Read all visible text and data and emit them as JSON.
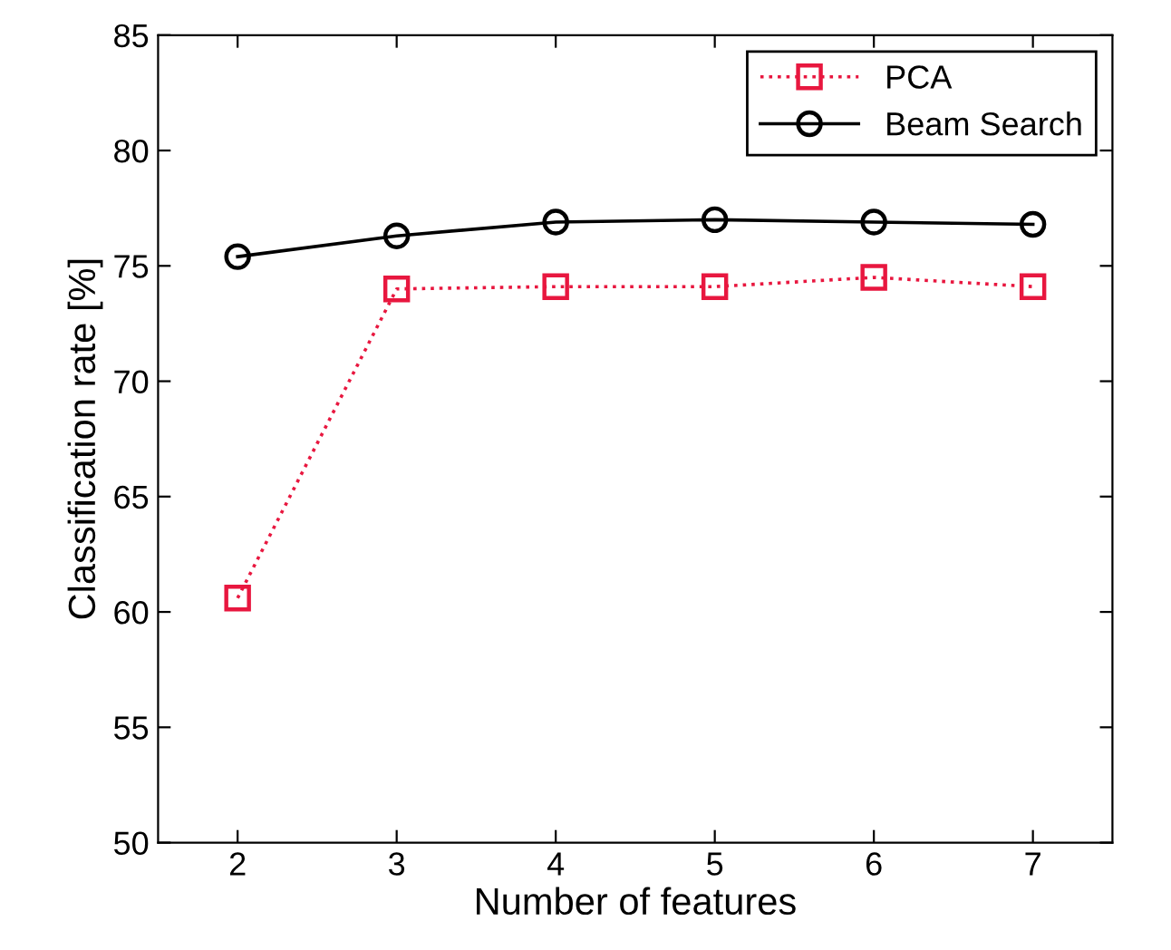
{
  "chart_data": {
    "type": "line",
    "xlabel": "Number of features",
    "ylabel": "Classification rate [%]",
    "x": [
      2,
      3,
      4,
      5,
      6,
      7
    ],
    "series": [
      {
        "name": "PCA",
        "color": "#e8173f",
        "values": [
          60.6,
          74.0,
          74.1,
          74.1,
          74.5,
          74.1
        ],
        "marker": "square",
        "line_style": "dotted"
      },
      {
        "name": "Beam Search",
        "color": "#000000",
        "values": [
          75.4,
          76.3,
          76.9,
          77.0,
          76.9,
          76.8
        ],
        "marker": "circle",
        "line_style": "solid"
      }
    ],
    "xlim": [
      1.5,
      7.5
    ],
    "xticks": [
      2,
      3,
      4,
      5,
      6,
      7
    ],
    "ylim": [
      50,
      85
    ],
    "yticks": [
      50,
      55,
      60,
      65,
      70,
      75,
      80,
      85
    ],
    "grid": false,
    "legend": "top right"
  }
}
